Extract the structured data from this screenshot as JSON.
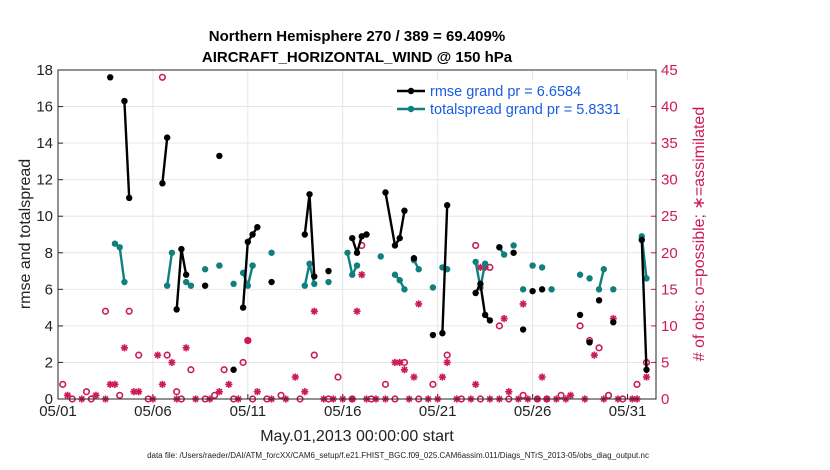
{
  "chart_data": {
    "type": "line",
    "title_lines": [
      "Northern Hemisphere 270 / 389 = 69.409%",
      "AIRCRAFT_HORIZONTAL_WIND @ 150 hPa"
    ],
    "xlabel": "May.01,2013 00:00:00 start",
    "ylabel_left": "rmse and totalspread",
    "ylabel_right": "# of obs: o=possible; ∗=assimilated",
    "footer": "data file: /Users/raeder/DAI/ATM_forcXX/CAM6_setup/f.e21.FHIST_BGC.f09_025.CAM6assim.011/Diags_NTrS_2013-05/obs_diag_output.nc",
    "x_range_days": [
      0,
      31.5
    ],
    "x_ticks": [
      {
        "day": 0,
        "label": "05/01"
      },
      {
        "day": 5,
        "label": "05/06"
      },
      {
        "day": 10,
        "label": "05/11"
      },
      {
        "day": 15,
        "label": "05/16"
      },
      {
        "day": 20,
        "label": "05/21"
      },
      {
        "day": 25,
        "label": "05/26"
      },
      {
        "day": 30,
        "label": "05/31"
      }
    ],
    "ylim_left": [
      0,
      18
    ],
    "left_ticks": [
      "0",
      "2",
      "4",
      "6",
      "8",
      "10",
      "12",
      "14",
      "16",
      "18"
    ],
    "ylim_right": [
      0,
      45
    ],
    "right_ticks": [
      "0",
      "5",
      "10",
      "15",
      "20",
      "25",
      "30",
      "35",
      "40",
      "45"
    ],
    "grid": true,
    "legend_position": "top-right",
    "colors": {
      "rmse": "#000000",
      "spread": "#0f7f7f",
      "obs": "#cc1a55",
      "grid": "#e6e6e6",
      "legend_text": "#1a5ce0"
    },
    "series": [
      {
        "name": "rmse grand pr = 6.6584",
        "key": "rmse",
        "segments": [
          [
            [
              2.75,
              17.6
            ]
          ],
          [
            [
              3.5,
              16.3
            ],
            [
              3.75,
              11.0
            ]
          ],
          [
            [
              5.5,
              11.8
            ],
            [
              5.75,
              14.3
            ]
          ],
          [
            [
              6.25,
              4.9
            ],
            [
              6.5,
              8.2
            ],
            [
              6.75,
              6.8
            ]
          ],
          [
            [
              7.75,
              6.2
            ]
          ],
          [
            [
              8.5,
              13.3
            ]
          ],
          [
            [
              9.25,
              1.6
            ]
          ],
          [
            [
              9.75,
              5.0
            ],
            [
              10.0,
              8.6
            ],
            [
              10.25,
              9.0
            ],
            [
              10.5,
              9.4
            ]
          ],
          [
            [
              11.25,
              6.4
            ]
          ],
          [
            [
              13.0,
              9.0
            ],
            [
              13.25,
              11.2
            ],
            [
              13.5,
              6.7
            ]
          ],
          [
            [
              14.25,
              7.0
            ]
          ],
          [
            [
              15.5,
              8.8
            ],
            [
              15.75,
              8.0
            ],
            [
              16.0,
              8.9
            ],
            [
              16.25,
              9.0
            ]
          ],
          [
            [
              17.25,
              11.3
            ],
            [
              17.75,
              8.4
            ],
            [
              18.0,
              8.8
            ],
            [
              18.25,
              10.3
            ]
          ],
          [
            [
              18.75,
              7.7
            ]
          ],
          [
            [
              19.75,
              3.5
            ]
          ],
          [
            [
              20.25,
              3.6
            ],
            [
              20.5,
              10.6
            ]
          ],
          [
            [
              22.0,
              5.8
            ],
            [
              22.25,
              6.3
            ],
            [
              22.5,
              4.6
            ],
            [
              22.75,
              4.3
            ]
          ],
          [
            [
              23.25,
              8.3
            ]
          ],
          [
            [
              24.0,
              8.0
            ]
          ],
          [
            [
              24.5,
              3.8
            ]
          ],
          [
            [
              25.0,
              5.9
            ]
          ],
          [
            [
              25.5,
              6.0
            ]
          ],
          [
            [
              27.5,
              4.6
            ]
          ],
          [
            [
              28.0,
              3.1
            ]
          ],
          [
            [
              28.5,
              5.4
            ]
          ],
          [
            [
              29.25,
              4.2
            ]
          ],
          [
            [
              30.75,
              8.7
            ],
            [
              31.0,
              1.6
            ]
          ]
        ]
      },
      {
        "name": "totalspread grand pr = 5.8331",
        "key": "spread",
        "segments": [
          [
            [
              3.0,
              8.5
            ],
            [
              3.25,
              8.3
            ],
            [
              3.5,
              6.4
            ]
          ],
          [
            [
              5.75,
              6.2
            ],
            [
              6.0,
              8.0
            ]
          ],
          [
            [
              6.75,
              6.4
            ],
            [
              7.0,
              6.2
            ]
          ],
          [
            [
              7.75,
              7.1
            ]
          ],
          [
            [
              8.5,
              7.3
            ]
          ],
          [
            [
              9.25,
              6.3
            ]
          ],
          [
            [
              9.75,
              6.9
            ],
            [
              10.0,
              6.2
            ],
            [
              10.25,
              7.3
            ]
          ],
          [
            [
              11.25,
              8.0
            ]
          ],
          [
            [
              13.0,
              6.2
            ],
            [
              13.25,
              7.4
            ],
            [
              13.5,
              6.3
            ]
          ],
          [
            [
              14.25,
              6.4
            ]
          ],
          [
            [
              15.25,
              8.0
            ],
            [
              15.5,
              6.8
            ],
            [
              15.75,
              7.3
            ]
          ],
          [
            [
              17.0,
              7.8
            ]
          ],
          [
            [
              17.75,
              6.8
            ],
            [
              18.0,
              6.5
            ],
            [
              18.25,
              6.0
            ]
          ],
          [
            [
              18.75,
              7.6
            ],
            [
              19.0,
              7.1
            ]
          ],
          [
            [
              19.75,
              6.1
            ]
          ],
          [
            [
              20.25,
              7.2
            ],
            [
              20.5,
              7.1
            ]
          ],
          [
            [
              22.0,
              7.5
            ],
            [
              22.25,
              6.1
            ],
            [
              22.5,
              7.4
            ]
          ],
          [
            [
              23.25,
              8.3
            ],
            [
              23.5,
              7.9
            ]
          ],
          [
            [
              24.0,
              8.4
            ]
          ],
          [
            [
              24.5,
              6.0
            ]
          ],
          [
            [
              25.0,
              7.3
            ]
          ],
          [
            [
              25.5,
              7.2
            ]
          ],
          [
            [
              26.0,
              6.0
            ]
          ],
          [
            [
              27.5,
              6.8
            ]
          ],
          [
            [
              28.0,
              6.6
            ]
          ],
          [
            [
              28.5,
              6.0
            ],
            [
              28.75,
              7.1
            ]
          ],
          [
            [
              29.25,
              6.0
            ]
          ],
          [
            [
              30.75,
              8.9
            ],
            [
              31.0,
              6.6
            ]
          ]
        ]
      }
    ],
    "obs_possible": [
      [
        0.25,
        2.0
      ],
      [
        0.75,
        0.0
      ],
      [
        1.5,
        1.0
      ],
      [
        1.75,
        0.0
      ],
      [
        2.5,
        12.0
      ],
      [
        3.25,
        0.5
      ],
      [
        3.75,
        12.0
      ],
      [
        4.25,
        6.0
      ],
      [
        4.75,
        0.0
      ],
      [
        5.5,
        44.0
      ],
      [
        5.75,
        6.0
      ],
      [
        6.25,
        1.0
      ],
      [
        6.5,
        0.0
      ],
      [
        7.0,
        4.0
      ],
      [
        7.75,
        0.0
      ],
      [
        8.25,
        0.5
      ],
      [
        8.75,
        4.0
      ],
      [
        9.25,
        0.0
      ],
      [
        9.75,
        5.0
      ],
      [
        10.0,
        8.0
      ],
      [
        10.25,
        0.0
      ],
      [
        11.0,
        0.0
      ],
      [
        11.75,
        0.5
      ],
      [
        12.75,
        0.0
      ],
      [
        13.5,
        6.0
      ],
      [
        14.25,
        0.0
      ],
      [
        14.75,
        3.0
      ],
      [
        15.5,
        0.0
      ],
      [
        16.0,
        21.0
      ],
      [
        16.5,
        0.0
      ],
      [
        17.25,
        2.0
      ],
      [
        17.75,
        0.0
      ],
      [
        18.25,
        5.0
      ],
      [
        19.0,
        0.0
      ],
      [
        19.75,
        2.0
      ],
      [
        20.5,
        6.0
      ],
      [
        21.25,
        0.0
      ],
      [
        22.0,
        21.0
      ],
      [
        22.25,
        0.0
      ],
      [
        22.75,
        18.0
      ],
      [
        23.25,
        10.0
      ],
      [
        23.75,
        0.0
      ],
      [
        24.5,
        0.5
      ],
      [
        25.25,
        0.0
      ],
      [
        25.75,
        0.0
      ],
      [
        26.5,
        0.5
      ],
      [
        27.5,
        10.0
      ],
      [
        28.0,
        8.0
      ],
      [
        28.5,
        7.0
      ],
      [
        29.0,
        0.5
      ],
      [
        29.75,
        0.0
      ],
      [
        30.5,
        2.0
      ],
      [
        31.0,
        5.0
      ]
    ],
    "obs_assimilated": [
      [
        0.5,
        0.5
      ],
      [
        1.25,
        0.0
      ],
      [
        2.0,
        0.5
      ],
      [
        2.5,
        0.0
      ],
      [
        2.75,
        2.0
      ],
      [
        3.0,
        2.0
      ],
      [
        3.5,
        7.0
      ],
      [
        4.0,
        1.0
      ],
      [
        4.25,
        1.0
      ],
      [
        5.0,
        0.0
      ],
      [
        5.25,
        6.0
      ],
      [
        5.5,
        2.0
      ],
      [
        6.0,
        5.0
      ],
      [
        6.25,
        0.0
      ],
      [
        6.75,
        7.0
      ],
      [
        7.25,
        0.0
      ],
      [
        8.0,
        0.0
      ],
      [
        8.5,
        1.0
      ],
      [
        9.0,
        2.0
      ],
      [
        9.5,
        0.0
      ],
      [
        10.0,
        8.0
      ],
      [
        10.5,
        1.0
      ],
      [
        11.25,
        0.0
      ],
      [
        12.0,
        0.0
      ],
      [
        12.5,
        3.0
      ],
      [
        13.0,
        1.0
      ],
      [
        13.5,
        12.0
      ],
      [
        14.0,
        0.0
      ],
      [
        14.5,
        0.0
      ],
      [
        15.0,
        0.0
      ],
      [
        15.5,
        0.0
      ],
      [
        15.75,
        12.0
      ],
      [
        16.0,
        17.0
      ],
      [
        16.25,
        0.0
      ],
      [
        16.75,
        0.0
      ],
      [
        17.25,
        0.0
      ],
      [
        17.75,
        5.0
      ],
      [
        18.0,
        5.0
      ],
      [
        18.25,
        4.0
      ],
      [
        18.5,
        0.0
      ],
      [
        18.75,
        3.0
      ],
      [
        19.0,
        13.0
      ],
      [
        19.5,
        0.0
      ],
      [
        20.0,
        0.0
      ],
      [
        20.25,
        3.0
      ],
      [
        20.5,
        5.0
      ],
      [
        21.0,
        0.0
      ],
      [
        21.75,
        0.0
      ],
      [
        22.0,
        2.0
      ],
      [
        22.25,
        18.0
      ],
      [
        22.5,
        18.0
      ],
      [
        22.75,
        0.0
      ],
      [
        23.25,
        0.0
      ],
      [
        23.5,
        11.0
      ],
      [
        23.75,
        1.0
      ],
      [
        24.25,
        0.0
      ],
      [
        24.5,
        13.0
      ],
      [
        24.75,
        0.0
      ],
      [
        25.25,
        0.0
      ],
      [
        25.5,
        3.0
      ],
      [
        25.75,
        0.0
      ],
      [
        26.25,
        0.0
      ],
      [
        26.75,
        0.0
      ],
      [
        27.0,
        0.5
      ],
      [
        27.75,
        0.0
      ],
      [
        28.25,
        6.0
      ],
      [
        28.75,
        0.0
      ],
      [
        29.25,
        11.0
      ],
      [
        29.5,
        0.0
      ],
      [
        30.25,
        0.0
      ],
      [
        30.5,
        0.0
      ],
      [
        31.0,
        3.0
      ]
    ]
  }
}
